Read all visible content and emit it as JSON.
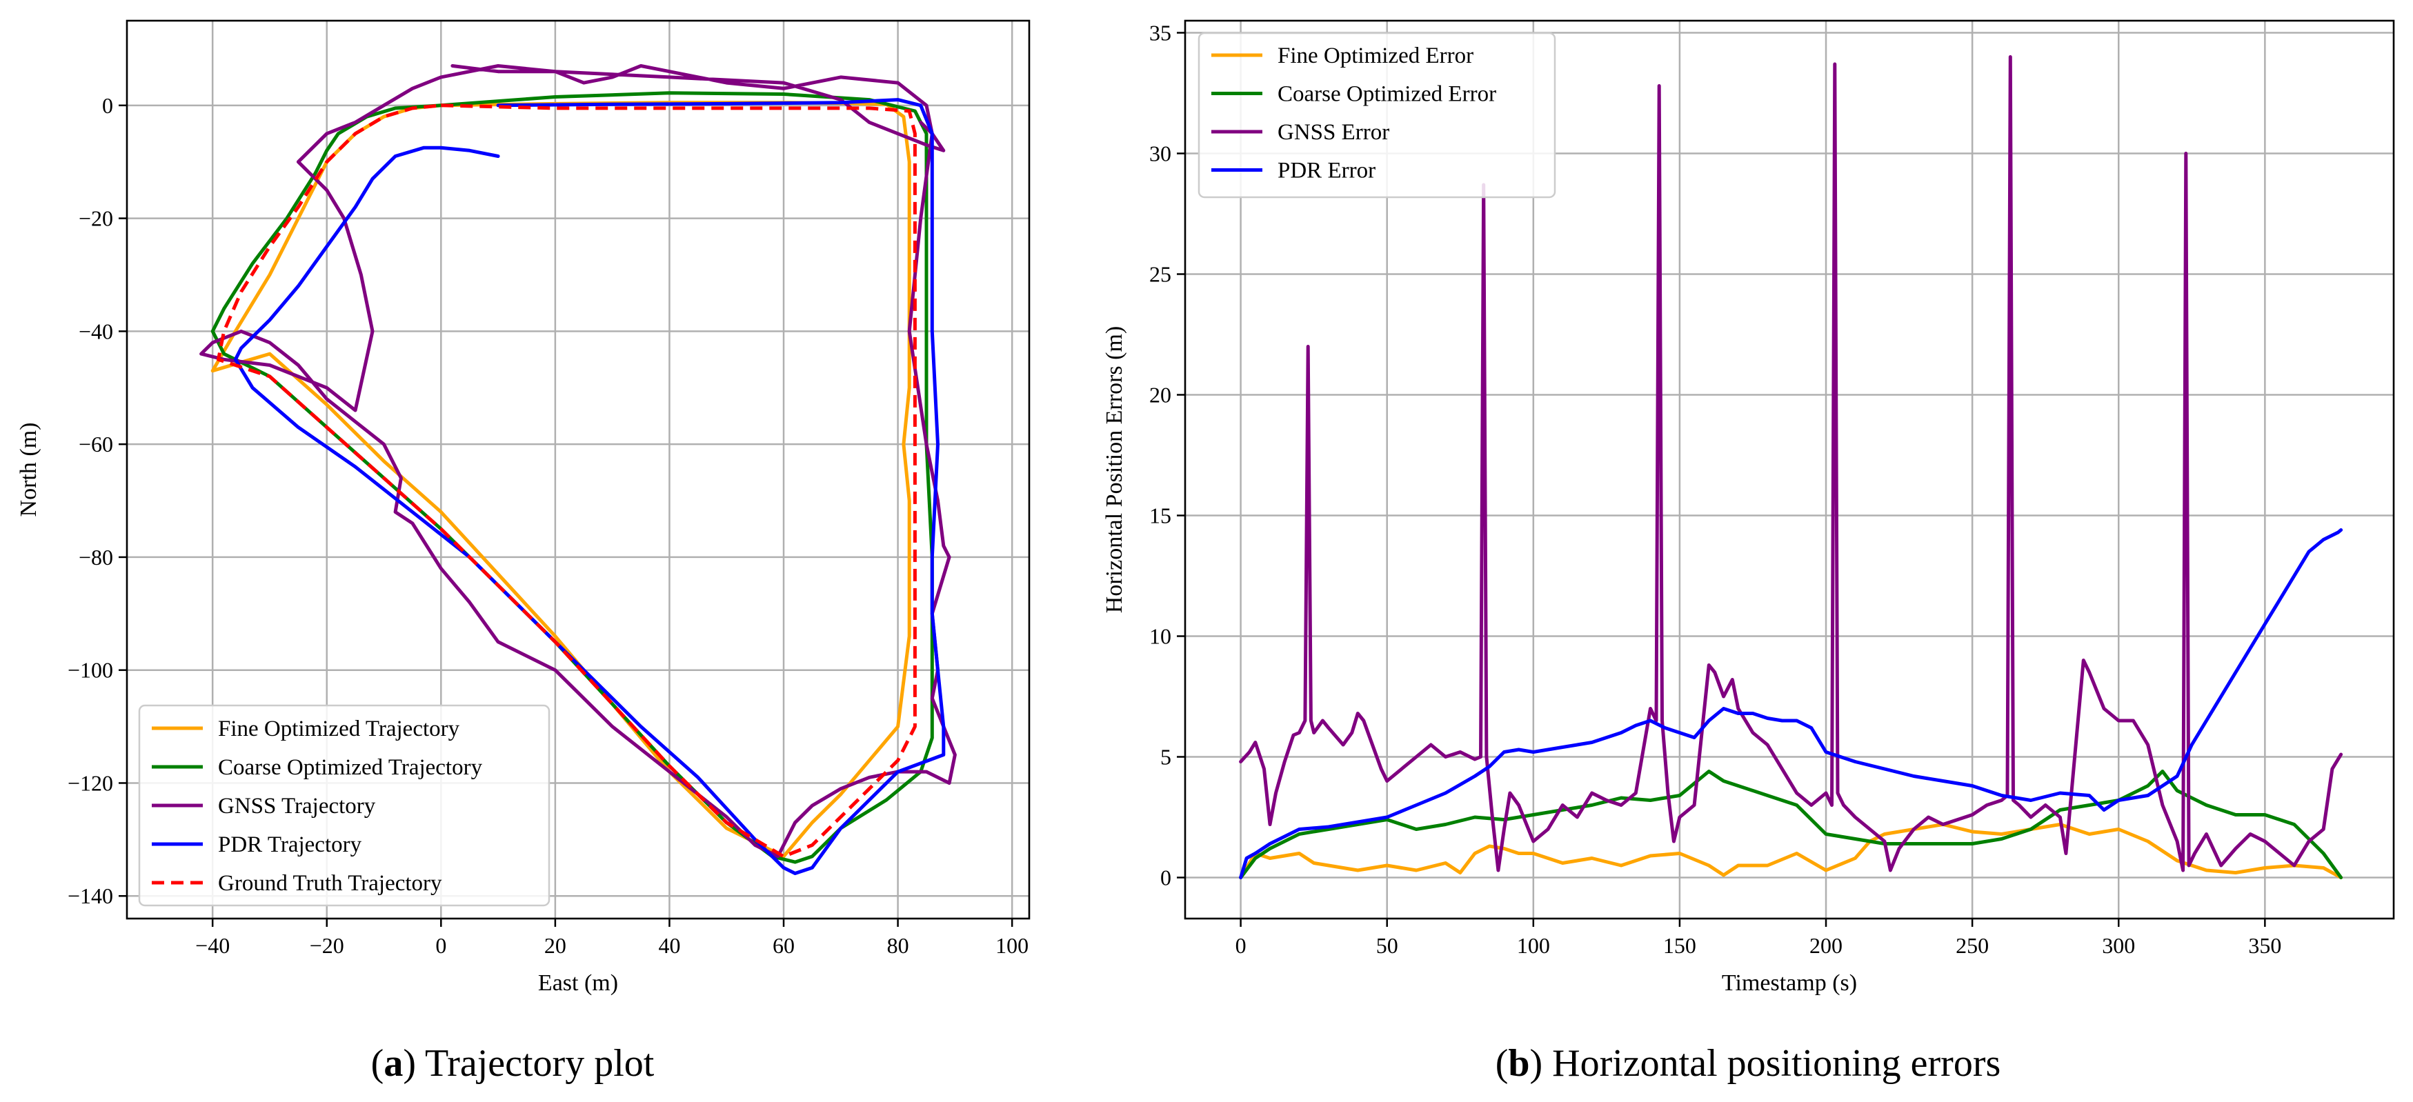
{
  "chart_data": [
    {
      "type": "line",
      "caption_letter": "a",
      "caption_text": " Trajectory plot",
      "xlabel": "East (m)",
      "ylabel": "North (m)",
      "xlim": [
        -55,
        103
      ],
      "ylim": [
        -144,
        15
      ],
      "xticks": [
        -40,
        -20,
        0,
        20,
        40,
        60,
        80,
        100
      ],
      "yticks": [
        0,
        -20,
        -40,
        -60,
        -80,
        -100,
        -120,
        -140
      ],
      "xtick_labels": [
        "−40",
        "−20",
        "0",
        "20",
        "40",
        "60",
        "80",
        "100"
      ],
      "ytick_labels": [
        "0",
        "−20",
        "−40",
        "−60",
        "−80",
        "−100",
        "−120",
        "−140"
      ],
      "grid": true,
      "legend_position": "lower-left",
      "series": [
        {
          "name": "Fine Optimized Trajectory",
          "color": "#ffa500",
          "dash": false,
          "x": [
            0,
            20,
            40,
            60,
            70,
            78,
            81,
            82,
            82,
            82,
            82,
            82,
            81,
            82,
            82,
            82,
            80,
            75,
            70,
            65,
            60,
            50,
            40,
            30,
            20,
            10,
            0,
            -10,
            -20,
            -30,
            -40,
            -36,
            -30,
            -25,
            -20,
            -15,
            -10,
            -5,
            0
          ],
          "y": [
            0,
            0.3,
            0.5,
            0.5,
            0.4,
            0.2,
            -2,
            -10,
            -20,
            -30,
            -40,
            -50,
            -60,
            -70,
            -80,
            -94,
            -110,
            -116,
            -122,
            -127,
            -133,
            -128,
            -118,
            -106,
            -94,
            -83,
            -72,
            -63,
            -53,
            -44,
            -47,
            -40,
            -30,
            -20,
            -10,
            -5,
            -2,
            -0.5,
            0
          ]
        },
        {
          "name": "Coarse Optimized Trajectory",
          "color": "#008000",
          "dash": false,
          "x": [
            0,
            20,
            40,
            60,
            75,
            83,
            85,
            85,
            85,
            85,
            86,
            86,
            86,
            86,
            84,
            78,
            70,
            65,
            62,
            58,
            50,
            40,
            30,
            20,
            10,
            0,
            -10,
            -20,
            -30,
            -38,
            -40,
            -38,
            -33,
            -27,
            -22,
            -20,
            -18,
            -13,
            -8,
            0
          ],
          "y": [
            0,
            1.5,
            2.2,
            2,
            1,
            -1,
            -5,
            -20,
            -40,
            -60,
            -80,
            -100,
            -108,
            -112,
            -118,
            -123,
            -128,
            -133,
            -134,
            -133,
            -127,
            -117,
            -106,
            -95,
            -85,
            -75,
            -66,
            -57,
            -48,
            -44,
            -40,
            -36,
            -28,
            -20,
            -12,
            -8,
            -5,
            -2,
            -0.5,
            0
          ]
        },
        {
          "name": "GNSS Trajectory",
          "color": "#800080",
          "dash": false,
          "x": [
            2,
            10,
            20,
            25,
            30,
            35,
            40,
            50,
            60,
            70,
            80,
            85,
            86,
            84,
            82,
            85,
            87,
            88,
            89,
            86,
            87,
            86,
            88,
            90,
            89,
            85,
            80,
            75,
            70,
            65,
            62,
            59,
            55,
            50,
            40,
            30,
            20,
            10,
            5,
            0,
            -5,
            -8,
            -7,
            -10,
            -15,
            -20,
            -25,
            -30,
            -35,
            -40,
            -42,
            -38,
            -30,
            -20,
            -15,
            -12,
            -14,
            -17,
            -20,
            -23,
            -25,
            -20,
            -15,
            -10,
            -5,
            0,
            10,
            20,
            40,
            60,
            70,
            75,
            80,
            85,
            88,
            86,
            84
          ],
          "y": [
            7,
            6,
            6,
            4,
            5,
            7,
            6,
            4,
            3,
            5,
            4,
            0,
            -5,
            -20,
            -40,
            -60,
            -70,
            -78,
            -80,
            -90,
            -100,
            -105,
            -110,
            -115,
            -120,
            -118,
            -118,
            -119,
            -121,
            -124,
            -127,
            -133,
            -131,
            -126,
            -118,
            -110,
            -100,
            -95,
            -88,
            -82,
            -74,
            -72,
            -66,
            -60,
            -56,
            -52,
            -46,
            -42,
            -40,
            -42,
            -44,
            -45,
            -46,
            -50,
            -54,
            -40,
            -30,
            -20,
            -15,
            -12,
            -10,
            -5,
            -3,
            0,
            3,
            5,
            7,
            6,
            5,
            4,
            1,
            -3,
            -5,
            -7,
            -8,
            -5,
            -3
          ]
        },
        {
          "name": "PDR Trajectory",
          "color": "#0000ff",
          "dash": false,
          "x": [
            10,
            5,
            0,
            -3,
            -8,
            -12,
            -15,
            -20,
            -25,
            -30,
            -35,
            -36,
            -33,
            -25,
            -15,
            -5,
            5,
            15,
            25,
            35,
            45,
            55,
            60,
            62,
            65,
            70,
            80,
            88,
            88,
            87,
            86,
            86,
            87,
            86,
            86,
            86,
            84,
            80,
            70,
            50,
            30,
            10
          ],
          "y": [
            -9,
            -8,
            -7.5,
            -7.5,
            -9,
            -13,
            -18,
            -25,
            -32,
            -38,
            -43,
            -45,
            -50,
            -57,
            -64,
            -72,
            -80,
            -90,
            -100,
            -110,
            -119,
            -130,
            -135,
            -136,
            -135,
            -128,
            -118,
            -115,
            -110,
            -100,
            -90,
            -80,
            -60,
            -40,
            -20,
            -5,
            0,
            1,
            0.5,
            0.3,
            0.2,
            0
          ]
        },
        {
          "name": "Ground Truth Trajectory",
          "color": "#ff0000",
          "dash": true,
          "x": [
            0,
            20,
            40,
            60,
            75,
            82,
            83,
            83,
            83,
            83,
            83,
            83,
            83,
            83,
            82,
            80,
            75,
            70,
            65,
            60,
            50,
            40,
            30,
            20,
            10,
            0,
            -10,
            -20,
            -30,
            -39,
            -38,
            -35,
            -30,
            -25,
            -20,
            -15,
            -10,
            -5,
            0
          ],
          "y": [
            0,
            -0.5,
            -0.5,
            -0.5,
            -0.5,
            -1,
            -5,
            -20,
            -40,
            -60,
            -80,
            -100,
            -108,
            -110,
            -112,
            -116,
            -121,
            -126,
            -131,
            -133,
            -127,
            -117,
            -106,
            -95,
            -85,
            -75,
            -66,
            -57,
            -48,
            -45,
            -40,
            -33,
            -25,
            -18,
            -10,
            -5,
            -2,
            -0.5,
            0
          ]
        }
      ]
    },
    {
      "type": "line",
      "caption_letter": "b",
      "caption_text": " Horizontal positioning errors",
      "xlabel": "Timestamp (s)",
      "ylabel": "Horizontal Position Errors (m)",
      "xlim": [
        -19,
        394
      ],
      "ylim": [
        -1.7,
        35.5
      ],
      "xticks": [
        0,
        50,
        100,
        150,
        200,
        250,
        300,
        350
      ],
      "yticks": [
        0,
        5,
        10,
        15,
        20,
        25,
        30,
        35
      ],
      "xtick_labels": [
        "0",
        "50",
        "100",
        "150",
        "200",
        "250",
        "300",
        "350"
      ],
      "ytick_labels": [
        "0",
        "5",
        "10",
        "15",
        "20",
        "25",
        "30",
        "35"
      ],
      "grid": true,
      "legend_position": "upper-left",
      "series": [
        {
          "name": "Fine Optimized Error",
          "color": "#ffa500",
          "dash": false,
          "x": [
            0,
            5,
            10,
            15,
            20,
            25,
            30,
            40,
            50,
            60,
            70,
            75,
            80,
            85,
            90,
            95,
            100,
            110,
            120,
            130,
            140,
            150,
            160,
            165,
            170,
            180,
            190,
            200,
            210,
            215,
            220,
            230,
            240,
            250,
            260,
            270,
            280,
            290,
            300,
            310,
            320,
            330,
            340,
            350,
            360,
            370,
            376
          ],
          "y": [
            0,
            1,
            0.8,
            0.9,
            1.0,
            0.6,
            0.5,
            0.3,
            0.5,
            0.3,
            0.6,
            0.2,
            1.0,
            1.3,
            1.2,
            1.0,
            1.0,
            0.6,
            0.8,
            0.5,
            0.9,
            1.0,
            0.5,
            0.1,
            0.5,
            0.5,
            1.0,
            0.3,
            0.8,
            1.5,
            1.8,
            2.0,
            2.2,
            1.9,
            1.8,
            2.0,
            2.2,
            1.8,
            2.0,
            1.5,
            0.7,
            0.3,
            0.2,
            0.4,
            0.5,
            0.4,
            0
          ]
        },
        {
          "name": "Coarse Optimized Error",
          "color": "#008000",
          "dash": false,
          "x": [
            0,
            5,
            10,
            20,
            30,
            40,
            50,
            60,
            70,
            80,
            90,
            100,
            110,
            120,
            130,
            140,
            150,
            160,
            165,
            170,
            180,
            190,
            200,
            210,
            220,
            230,
            240,
            250,
            260,
            270,
            280,
            290,
            300,
            310,
            315,
            320,
            330,
            340,
            350,
            360,
            370,
            376
          ],
          "y": [
            0,
            0.8,
            1.2,
            1.8,
            2.0,
            2.2,
            2.4,
            2.0,
            2.2,
            2.5,
            2.4,
            2.6,
            2.8,
            3.0,
            3.3,
            3.2,
            3.4,
            4.4,
            4.0,
            3.8,
            3.4,
            3.0,
            1.8,
            1.6,
            1.4,
            1.4,
            1.4,
            1.4,
            1.6,
            2.0,
            2.8,
            3.0,
            3.2,
            3.8,
            4.4,
            3.6,
            3.0,
            2.6,
            2.6,
            2.2,
            1.0,
            0
          ]
        },
        {
          "name": "GNSS Error",
          "color": "#800080",
          "dash": false,
          "x": [
            0,
            3,
            5,
            8,
            10,
            12,
            15,
            18,
            20,
            22,
            23,
            24,
            25,
            28,
            30,
            35,
            38,
            40,
            42,
            45,
            48,
            50,
            55,
            60,
            65,
            70,
            75,
            80,
            82,
            83,
            84,
            86,
            88,
            90,
            92,
            95,
            100,
            105,
            110,
            115,
            120,
            125,
            130,
            135,
            140,
            142,
            143,
            144,
            146,
            148,
            150,
            155,
            160,
            162,
            165,
            168,
            170,
            175,
            180,
            185,
            190,
            195,
            200,
            202,
            203,
            204,
            206,
            210,
            215,
            220,
            222,
            225,
            230,
            235,
            240,
            245,
            250,
            255,
            260,
            262,
            263,
            264,
            266,
            270,
            275,
            280,
            282,
            285,
            288,
            290,
            295,
            300,
            305,
            310,
            315,
            320,
            322,
            323,
            324,
            326,
            330,
            335,
            340,
            345,
            350,
            355,
            360,
            365,
            370,
            373,
            376
          ],
          "y": [
            4.8,
            5.2,
            5.6,
            4.5,
            2.2,
            3.5,
            4.8,
            5.9,
            6.0,
            6.5,
            22.0,
            6.5,
            6.0,
            6.5,
            6.2,
            5.5,
            6.0,
            6.8,
            6.5,
            5.5,
            4.5,
            4.0,
            4.5,
            5.0,
            5.5,
            5.0,
            5.2,
            4.9,
            5.0,
            28.7,
            5.0,
            2.5,
            0.3,
            2.0,
            3.5,
            3.0,
            1.5,
            2.0,
            3.0,
            2.5,
            3.5,
            3.2,
            3.0,
            3.5,
            7.0,
            6.5,
            32.8,
            6.5,
            3.5,
            1.5,
            2.5,
            3.0,
            8.8,
            8.5,
            7.5,
            8.2,
            7.0,
            6.0,
            5.5,
            4.5,
            3.5,
            3.0,
            3.5,
            3.0,
            33.7,
            3.5,
            3.0,
            2.5,
            2.0,
            1.5,
            0.3,
            1.2,
            2.0,
            2.5,
            2.2,
            2.4,
            2.6,
            3.0,
            3.2,
            3.4,
            34.0,
            3.2,
            3.0,
            2.5,
            3.0,
            2.5,
            1.0,
            5.0,
            9.0,
            8.5,
            7.0,
            6.5,
            6.5,
            5.5,
            3.0,
            1.5,
            0.3,
            30.0,
            0.5,
            1.0,
            1.8,
            0.5,
            1.2,
            1.8,
            1.5,
            1.0,
            0.5,
            1.5,
            2.0,
            4.5,
            5.1
          ]
        },
        {
          "name": "PDR Error",
          "color": "#0000ff",
          "dash": false,
          "x": [
            0,
            2,
            5,
            10,
            20,
            30,
            40,
            50,
            60,
            70,
            80,
            85,
            90,
            95,
            100,
            110,
            120,
            130,
            135,
            140,
            145,
            150,
            155,
            160,
            165,
            170,
            175,
            180,
            185,
            190,
            195,
            200,
            205,
            210,
            220,
            230,
            240,
            250,
            260,
            270,
            280,
            290,
            295,
            300,
            310,
            320,
            325,
            330,
            335,
            340,
            345,
            350,
            355,
            360,
            365,
            370,
            375,
            376
          ],
          "y": [
            0,
            0.8,
            1.0,
            1.4,
            2.0,
            2.1,
            2.3,
            2.5,
            3.0,
            3.5,
            4.2,
            4.6,
            5.2,
            5.3,
            5.2,
            5.4,
            5.6,
            6.0,
            6.3,
            6.5,
            6.2,
            6.0,
            5.8,
            6.5,
            7.0,
            6.8,
            6.8,
            6.6,
            6.5,
            6.5,
            6.2,
            5.2,
            5.0,
            4.8,
            4.5,
            4.2,
            4.0,
            3.8,
            3.4,
            3.2,
            3.5,
            3.4,
            2.8,
            3.2,
            3.4,
            4.2,
            5.5,
            6.5,
            7.5,
            8.5,
            9.5,
            10.5,
            11.5,
            12.5,
            13.5,
            14.0,
            14.3,
            14.4
          ]
        }
      ]
    }
  ]
}
